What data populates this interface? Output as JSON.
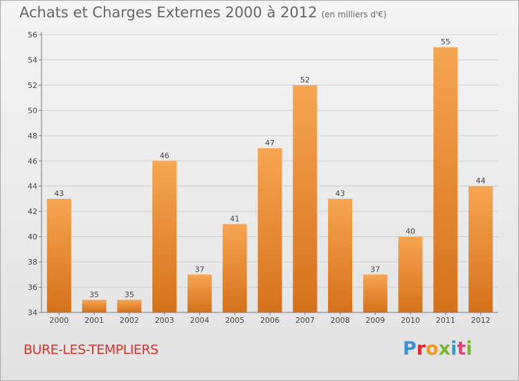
{
  "header": {
    "title": "Achats et Charges Externes 2000 à 2012",
    "subtitle": "(en milliers d'€)"
  },
  "footer": {
    "commune": "BURE-LES-TEMPLIERS",
    "logo": "Proxiti"
  },
  "colors": {
    "bar_light": "#f6a552",
    "bar_dark": "#d6711a",
    "axis": "#777777",
    "grid": "#cfcfcf",
    "text": "#444444"
  },
  "chart_data": {
    "type": "bar",
    "title": "Achats et Charges Externes 2000 à 2012",
    "subtitle": "(en milliers d'€)",
    "categories": [
      "2000",
      "2001",
      "2002",
      "2003",
      "2004",
      "2005",
      "2006",
      "2007",
      "2008",
      "2009",
      "2010",
      "2011",
      "2012"
    ],
    "values": [
      43,
      35,
      35,
      46,
      37,
      41,
      47,
      52,
      43,
      37,
      40,
      55,
      44
    ],
    "ylim": [
      34,
      56
    ],
    "yticks": [
      34,
      36,
      38,
      40,
      42,
      44,
      46,
      48,
      50,
      52,
      54,
      56
    ],
    "grid": true,
    "data_labels": true
  }
}
